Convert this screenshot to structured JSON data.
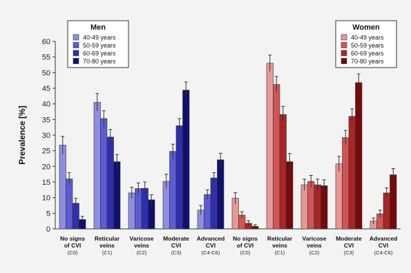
{
  "chart_data": {
    "type": "bar",
    "ylabel": "Prevalence [%]",
    "ylim": [
      0,
      60
    ],
    "yticks": [
      0,
      5,
      10,
      15,
      20,
      25,
      30,
      35,
      40,
      45,
      50,
      55,
      60
    ],
    "grid": false,
    "categories": [
      {
        "line1": "No signs",
        "line2": "of CVI",
        "code": "(C0)"
      },
      {
        "line1": "Reticular",
        "line2": "veins",
        "code": "(C1)"
      },
      {
        "line1": "Varicose",
        "line2": "veins",
        "code": "(C2)"
      },
      {
        "line1": "Moderate",
        "line2": "CVI",
        "code": "(C3)"
      },
      {
        "line1": "Advanced",
        "line2": "CVI",
        "code": "(C4-C6)"
      }
    ],
    "groups": [
      {
        "name": "Men",
        "legend_position": "top-left",
        "series": [
          {
            "name": "40-49 years",
            "color": "#8e8ee2",
            "values": [
              26.8,
              40.5,
              11.5,
              15.2,
              6.0
            ],
            "errors": [
              2.8,
              2.8,
              1.8,
              2.3,
              1.5
            ]
          },
          {
            "name": "50-59 years",
            "color": "#5c5cd4",
            "values": [
              16.0,
              35.3,
              12.9,
              24.8,
              11.0
            ],
            "errors": [
              2.0,
              2.5,
              1.8,
              2.3,
              1.5
            ]
          },
          {
            "name": "60-69 years",
            "color": "#2f2fae",
            "values": [
              8.2,
              29.4,
              13.0,
              33.0,
              16.3
            ],
            "errors": [
              1.6,
              2.4,
              2.0,
              2.3,
              1.7
            ]
          },
          {
            "name": "70-80 years",
            "color": "#10106e",
            "values": [
              3.0,
              21.5,
              9.3,
              44.4,
              22.1
            ],
            "errors": [
              1.0,
              2.3,
              1.6,
              2.6,
              2.1
            ]
          }
        ]
      },
      {
        "name": "Women",
        "legend_position": "top-right",
        "series": [
          {
            "name": "40-49 years",
            "color": "#e89797",
            "values": [
              9.8,
              53.0,
              14.1,
              20.8,
              2.5
            ],
            "errors": [
              1.8,
              2.6,
              1.8,
              2.4,
              1.0
            ]
          },
          {
            "name": "50-59 years",
            "color": "#d25555",
            "values": [
              4.4,
              46.2,
              15.2,
              29.2,
              4.8
            ],
            "errors": [
              1.1,
              2.6,
              1.9,
              2.3,
              1.2
            ]
          },
          {
            "name": "60-69 years",
            "color": "#a82626",
            "values": [
              1.8,
              36.6,
              14.1,
              36.0,
              11.5
            ],
            "errors": [
              0.8,
              2.6,
              1.8,
              2.4,
              1.6
            ]
          },
          {
            "name": "70-80 years",
            "color": "#760a0a",
            "values": [
              0.8,
              21.5,
              13.8,
              46.8,
              17.3
            ],
            "errors": [
              0.5,
              2.6,
              1.9,
              2.8,
              2.0
            ]
          }
        ]
      }
    ]
  }
}
